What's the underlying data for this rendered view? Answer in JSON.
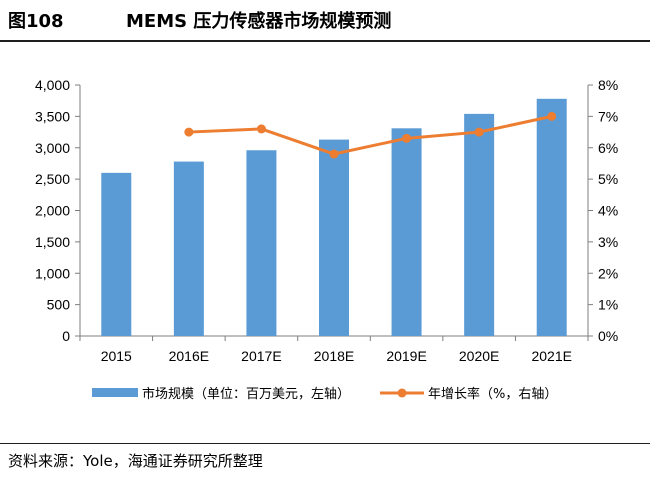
{
  "header": {
    "figure_no": "图108",
    "title": "MEMS 压力传感器市场规模预测"
  },
  "footer": {
    "source": "资料来源：Yole，海通证券研究所整理"
  },
  "colors": {
    "bar": "#5b9bd5",
    "line": "#ed7d31"
  },
  "chart_data": {
    "type": "bar",
    "title": "MEMS 压力传感器市场规模预测",
    "categories": [
      "2015",
      "2016E",
      "2017E",
      "2018E",
      "2019E",
      "2020E",
      "2021E"
    ],
    "series": [
      {
        "name": "市场规模（单位：百万美元，左轴）",
        "type": "bar",
        "axis": "left",
        "values": [
          2600,
          2780,
          2960,
          3130,
          3310,
          3540,
          3780
        ]
      },
      {
        "name": "年增长率（%，右轴）",
        "type": "line",
        "axis": "right",
        "values": [
          null,
          6.5,
          6.6,
          5.8,
          6.3,
          6.5,
          7.0
        ]
      }
    ],
    "y_left": {
      "min": 0,
      "max": 4000,
      "ticks": [
        "0",
        "500",
        "1,000",
        "1,500",
        "2,000",
        "2,500",
        "3,000",
        "3,500",
        "4,000"
      ]
    },
    "y_right": {
      "min": 0,
      "max": 8,
      "ticks": [
        "0%",
        "1%",
        "2%",
        "3%",
        "4%",
        "5%",
        "6%",
        "7%",
        "8%"
      ]
    },
    "grid": false,
    "legend_position": "bottom"
  }
}
